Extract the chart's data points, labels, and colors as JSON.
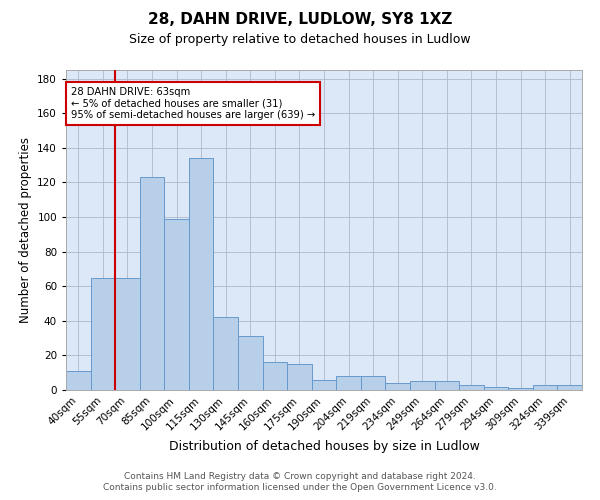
{
  "title1": "28, DAHN DRIVE, LUDLOW, SY8 1XZ",
  "title2": "Size of property relative to detached houses in Ludlow",
  "xlabel": "Distribution of detached houses by size in Ludlow",
  "ylabel": "Number of detached properties",
  "categories": [
    "40sqm",
    "55sqm",
    "70sqm",
    "85sqm",
    "100sqm",
    "115sqm",
    "130sqm",
    "145sqm",
    "160sqm",
    "175sqm",
    "190sqm",
    "204sqm",
    "219sqm",
    "234sqm",
    "249sqm",
    "264sqm",
    "279sqm",
    "294sqm",
    "309sqm",
    "324sqm",
    "339sqm"
  ],
  "values": [
    11,
    65,
    65,
    123,
    99,
    134,
    42,
    31,
    16,
    15,
    6,
    8,
    8,
    4,
    5,
    5,
    3,
    2,
    1,
    3,
    3
  ],
  "bar_color": "#b8cfea",
  "bar_edge_color": "#6699cc",
  "red_line_x": 1.5,
  "annotation_line1": "28 DAHN DRIVE: 63sqm",
  "annotation_line2": "← 5% of detached houses are smaller (31)",
  "annotation_line3": "95% of semi-detached houses are larger (639) →",
  "annotation_box_color": "#ffffff",
  "annotation_box_edge_color": "#cc0000",
  "red_line_color": "#cc0000",
  "ylim": [
    0,
    185
  ],
  "yticks": [
    0,
    20,
    40,
    60,
    80,
    100,
    120,
    140,
    160,
    180
  ],
  "background_color": "#dce8f8",
  "footer1": "Contains HM Land Registry data © Crown copyright and database right 2024.",
  "footer2": "Contains public sector information licensed under the Open Government Licence v3.0.",
  "title1_fontsize": 11,
  "title2_fontsize": 9,
  "xlabel_fontsize": 9,
  "ylabel_fontsize": 8.5,
  "tick_fontsize": 7.5,
  "footer_fontsize": 6.5
}
